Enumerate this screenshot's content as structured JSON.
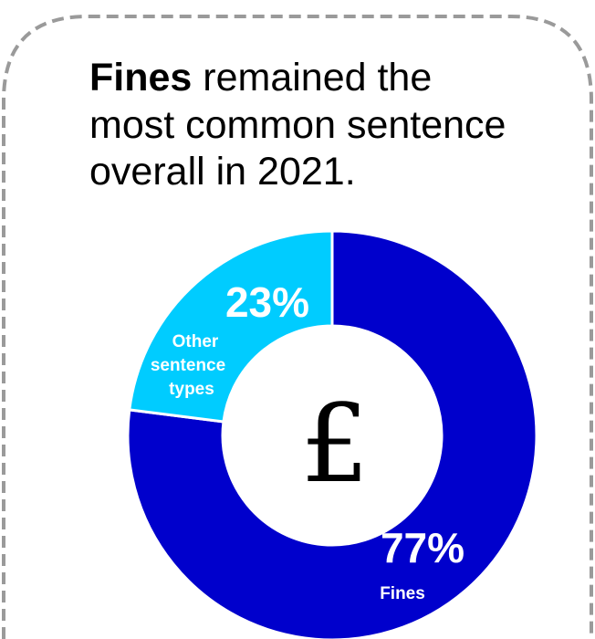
{
  "headline": {
    "bold_text": "Fines",
    "rest_line1": " remained the",
    "line2": "most common sentence",
    "line3": "overall in 2021."
  },
  "center_symbol": "£",
  "chart_data": {
    "type": "pie",
    "variant": "donut",
    "title": "",
    "slices": [
      {
        "name": "Fines",
        "value": 77,
        "label": "77%",
        "color": "#0000CC"
      },
      {
        "name": "Other sentence types",
        "label_lines": [
          "Other",
          "sentence",
          "types"
        ],
        "value": 23,
        "label": "23%",
        "color": "#00CCFF"
      }
    ]
  },
  "colors": {
    "border": "#9a9a9a",
    "fines": "#0000CC",
    "other": "#00CCFF"
  }
}
